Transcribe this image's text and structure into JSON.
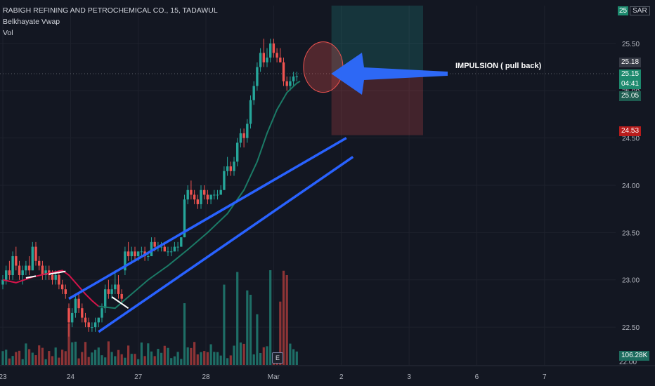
{
  "header": {
    "symbol_line": "RABIGH REFINING AND PETROCHEMICAL CO., 15, TADAWUL",
    "indicator_1": "Belkhayate Vwap",
    "indicator_2": "Vol"
  },
  "currency": {
    "badge": "25",
    "code": "SAR"
  },
  "annotation": "IMPULSION ( pull back)",
  "price_tags": {
    "high": "25.18",
    "last": "25.15",
    "countdown": "04:41",
    "target_low": "25.05",
    "stop": "24.53",
    "volume": "106.28K",
    "bottom_cut": "22.00"
  },
  "colors": {
    "up": "#26a69a",
    "down": "#ef5350",
    "vwap_red": "#d5144a",
    "channel": "#2962ff",
    "arrow": "#2d68f5"
  },
  "chart_data": {
    "type": "candlestick",
    "title": "RABIGH REFINING AND PETROCHEMICAL CO., 15, TADAWUL",
    "ylim": [
      22.1,
      25.9
    ],
    "y_ticks": [
      "25.50",
      "25.00",
      "24.50",
      "24.00",
      "23.50",
      "23.00",
      "22.50"
    ],
    "x_ticks": [
      {
        "label": "23",
        "idx": 0
      },
      {
        "label": "24",
        "idx": 20.5
      },
      {
        "label": "27",
        "idx": 41
      },
      {
        "label": "28",
        "idx": 61.5
      },
      {
        "label": "Mar",
        "idx": 82
      },
      {
        "label": "2",
        "idx": 102.5
      },
      {
        "label": "3",
        "idx": 123
      },
      {
        "label": "6",
        "idx": 143.5
      },
      {
        "label": "7",
        "idx": 164
      }
    ],
    "candles": [
      [
        22.95,
        23.05,
        22.9,
        23.0
      ],
      [
        23.0,
        23.15,
        22.95,
        23.1
      ],
      [
        23.1,
        23.2,
        23.0,
        23.05
      ],
      [
        23.05,
        23.3,
        23.0,
        23.25
      ],
      [
        23.25,
        23.35,
        23.1,
        23.15
      ],
      [
        23.15,
        23.2,
        23.0,
        23.05
      ],
      [
        23.05,
        23.15,
        22.95,
        23.1
      ],
      [
        23.1,
        23.2,
        23.05,
        23.15
      ],
      [
        23.15,
        23.25,
        23.05,
        23.1
      ],
      [
        23.1,
        23.4,
        23.1,
        23.35
      ],
      [
        23.35,
        23.4,
        23.15,
        23.2
      ],
      [
        23.2,
        23.25,
        23.1,
        23.15
      ],
      [
        23.15,
        23.2,
        23.0,
        23.05
      ],
      [
        23.05,
        23.15,
        23.0,
        23.1
      ],
      [
        23.1,
        23.15,
        23.0,
        23.05
      ],
      [
        23.05,
        23.1,
        22.95,
        23.0
      ],
      [
        23.0,
        23.1,
        22.95,
        23.05
      ],
      [
        23.05,
        23.1,
        22.9,
        22.95
      ],
      [
        22.95,
        23.0,
        22.85,
        22.9
      ],
      [
        22.9,
        22.95,
        22.8,
        22.85
      ],
      [
        22.7,
        22.75,
        22.4,
        22.55
      ],
      [
        22.55,
        22.7,
        22.5,
        22.65
      ],
      [
        22.65,
        22.85,
        22.6,
        22.8
      ],
      [
        22.8,
        22.85,
        22.65,
        22.7
      ],
      [
        22.7,
        22.75,
        22.55,
        22.6
      ],
      [
        22.6,
        22.65,
        22.5,
        22.55
      ],
      [
        22.55,
        22.6,
        22.45,
        22.5
      ],
      [
        22.5,
        22.55,
        22.45,
        22.5
      ],
      [
        22.5,
        22.6,
        22.45,
        22.55
      ],
      [
        22.55,
        22.6,
        22.5,
        22.6
      ],
      [
        22.6,
        22.75,
        22.55,
        22.7
      ],
      [
        22.7,
        22.95,
        22.65,
        22.9
      ],
      [
        22.9,
        23.0,
        22.8,
        22.85
      ],
      [
        22.85,
        22.95,
        22.8,
        22.9
      ],
      [
        22.9,
        23.1,
        22.85,
        22.95
      ],
      [
        22.95,
        23.05,
        22.8,
        22.85
      ],
      [
        22.85,
        22.9,
        22.75,
        22.8
      ],
      [
        23.1,
        23.35,
        23.05,
        23.3
      ],
      [
        23.3,
        23.4,
        23.2,
        23.25
      ],
      [
        23.25,
        23.35,
        23.2,
        23.3
      ],
      [
        23.3,
        23.35,
        23.2,
        23.25
      ],
      [
        23.25,
        23.3,
        23.2,
        23.3
      ],
      [
        23.3,
        23.35,
        23.25,
        23.3
      ],
      [
        23.3,
        23.35,
        23.2,
        23.25
      ],
      [
        23.25,
        23.3,
        23.2,
        23.25
      ],
      [
        23.25,
        23.45,
        23.25,
        23.4
      ],
      [
        23.4,
        23.45,
        23.3,
        23.35
      ],
      [
        23.35,
        23.4,
        23.3,
        23.35
      ],
      [
        23.35,
        23.4,
        23.3,
        23.35
      ],
      [
        23.35,
        23.4,
        23.3,
        23.3
      ],
      [
        23.3,
        23.35,
        23.25,
        23.3
      ],
      [
        23.3,
        23.35,
        23.25,
        23.3
      ],
      [
        23.3,
        23.4,
        23.3,
        23.35
      ],
      [
        23.35,
        23.4,
        23.3,
        23.35
      ],
      [
        23.35,
        23.45,
        23.35,
        23.45
      ],
      [
        23.45,
        23.9,
        23.45,
        23.85
      ],
      [
        23.85,
        24.0,
        23.8,
        23.95
      ],
      [
        23.95,
        24.05,
        23.85,
        23.9
      ],
      [
        23.9,
        23.95,
        23.8,
        23.85
      ],
      [
        23.85,
        23.9,
        23.75,
        23.8
      ],
      [
        23.8,
        24.0,
        23.75,
        23.95
      ],
      [
        23.95,
        24.0,
        23.85,
        23.9
      ],
      [
        23.9,
        23.95,
        23.8,
        23.85
      ],
      [
        23.85,
        23.9,
        23.8,
        23.9
      ],
      [
        23.9,
        23.95,
        23.85,
        23.9
      ],
      [
        23.9,
        23.95,
        23.85,
        23.9
      ],
      [
        23.9,
        24.0,
        23.9,
        23.95
      ],
      [
        23.95,
        24.2,
        23.95,
        24.15
      ],
      [
        24.15,
        24.3,
        24.1,
        24.2
      ],
      [
        24.2,
        24.25,
        24.1,
        24.15
      ],
      [
        24.15,
        24.3,
        24.1,
        24.25
      ],
      [
        24.25,
        24.5,
        24.2,
        24.45
      ],
      [
        24.45,
        24.6,
        24.4,
        24.55
      ],
      [
        24.55,
        24.6,
        24.4,
        24.5
      ],
      [
        24.5,
        24.7,
        24.45,
        24.65
      ],
      [
        24.65,
        24.95,
        24.6,
        24.9
      ],
      [
        24.9,
        25.1,
        24.85,
        25.05
      ],
      [
        25.05,
        25.3,
        25.0,
        25.25
      ],
      [
        25.25,
        25.45,
        25.2,
        25.4
      ],
      [
        25.4,
        25.55,
        25.25,
        25.3
      ],
      [
        25.3,
        25.45,
        25.25,
        25.35
      ],
      [
        25.35,
        25.55,
        25.3,
        25.5
      ],
      [
        25.5,
        25.55,
        25.35,
        25.4
      ],
      [
        25.4,
        25.45,
        25.3,
        25.35
      ],
      [
        25.35,
        25.45,
        25.3,
        25.3
      ],
      [
        25.3,
        25.35,
        25.05,
        25.1
      ],
      [
        25.1,
        25.15,
        25.0,
        25.05
      ],
      [
        25.05,
        25.15,
        25.0,
        25.1
      ],
      [
        25.1,
        25.2,
        25.05,
        25.15
      ],
      [
        25.15,
        25.2,
        25.1,
        25.15
      ]
    ],
    "volume_max_label": "106.28K",
    "vwap": {
      "name": "Belkhayate Vwap"
    },
    "channel": {
      "upper": [
        [
          20,
          22.8
        ],
        [
          104,
          24.5
        ]
      ],
      "lower": [
        [
          29,
          22.45
        ],
        [
          106,
          24.3
        ]
      ]
    },
    "position": {
      "entry": 25.18,
      "target": 25.9,
      "stop": 24.53
    }
  }
}
